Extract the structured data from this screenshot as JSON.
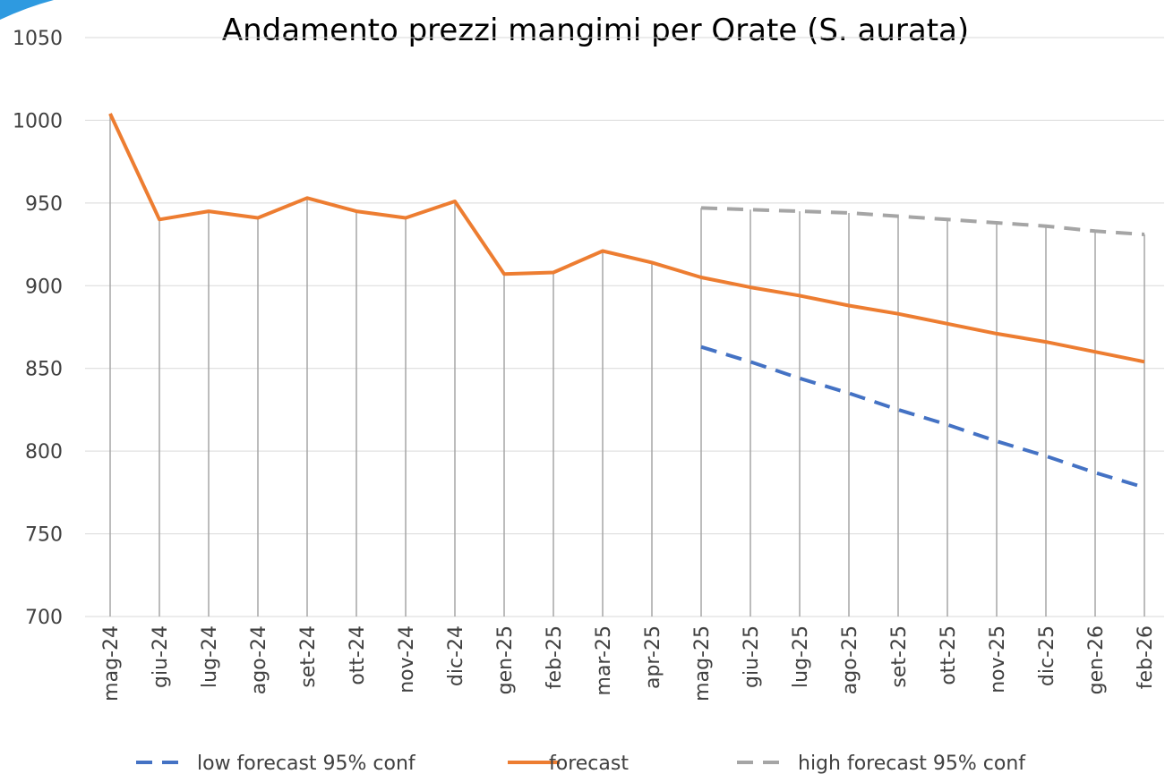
{
  "chart_data": {
    "type": "line",
    "title": "Andamento prezzi mangimi per Orate (S. aurata)",
    "categories": [
      "mag-24",
      "giu-24",
      "lug-24",
      "ago-24",
      "set-24",
      "ott-24",
      "nov-24",
      "dic-24",
      "gen-25",
      "feb-25",
      "mar-25",
      "apr-25",
      "mag-25",
      "giu-25",
      "lug-25",
      "ago-25",
      "set-25",
      "ott-25",
      "nov-25",
      "dic-25",
      "gen-26",
      "feb-26"
    ],
    "series": [
      {
        "name": "low forecast 95% conf",
        "color": "#4472c4",
        "dashed": true,
        "values": [
          null,
          null,
          null,
          null,
          null,
          null,
          null,
          null,
          null,
          null,
          null,
          null,
          863,
          854,
          844,
          835,
          825,
          816,
          806,
          797,
          787,
          778
        ]
      },
      {
        "name": "forecast",
        "color": "#ed7d31",
        "dashed": false,
        "values": [
          1004,
          940,
          945,
          941,
          953,
          945,
          941,
          951,
          907,
          908,
          921,
          914,
          905,
          899,
          894,
          888,
          883,
          877,
          871,
          866,
          860,
          854
        ]
      },
      {
        "name": "high forecast 95% conf",
        "color": "#a5a5a5",
        "dashed": true,
        "values": [
          null,
          null,
          null,
          null,
          null,
          null,
          null,
          null,
          null,
          null,
          null,
          null,
          947,
          946,
          945,
          944,
          942,
          940,
          938,
          936,
          933,
          931
        ]
      }
    ],
    "ylim": [
      700,
      1050
    ],
    "yticks": [
      700,
      750,
      800,
      850,
      900,
      950,
      1000,
      1050
    ],
    "grid": true,
    "drop_lines": true,
    "legend": "bottom"
  }
}
